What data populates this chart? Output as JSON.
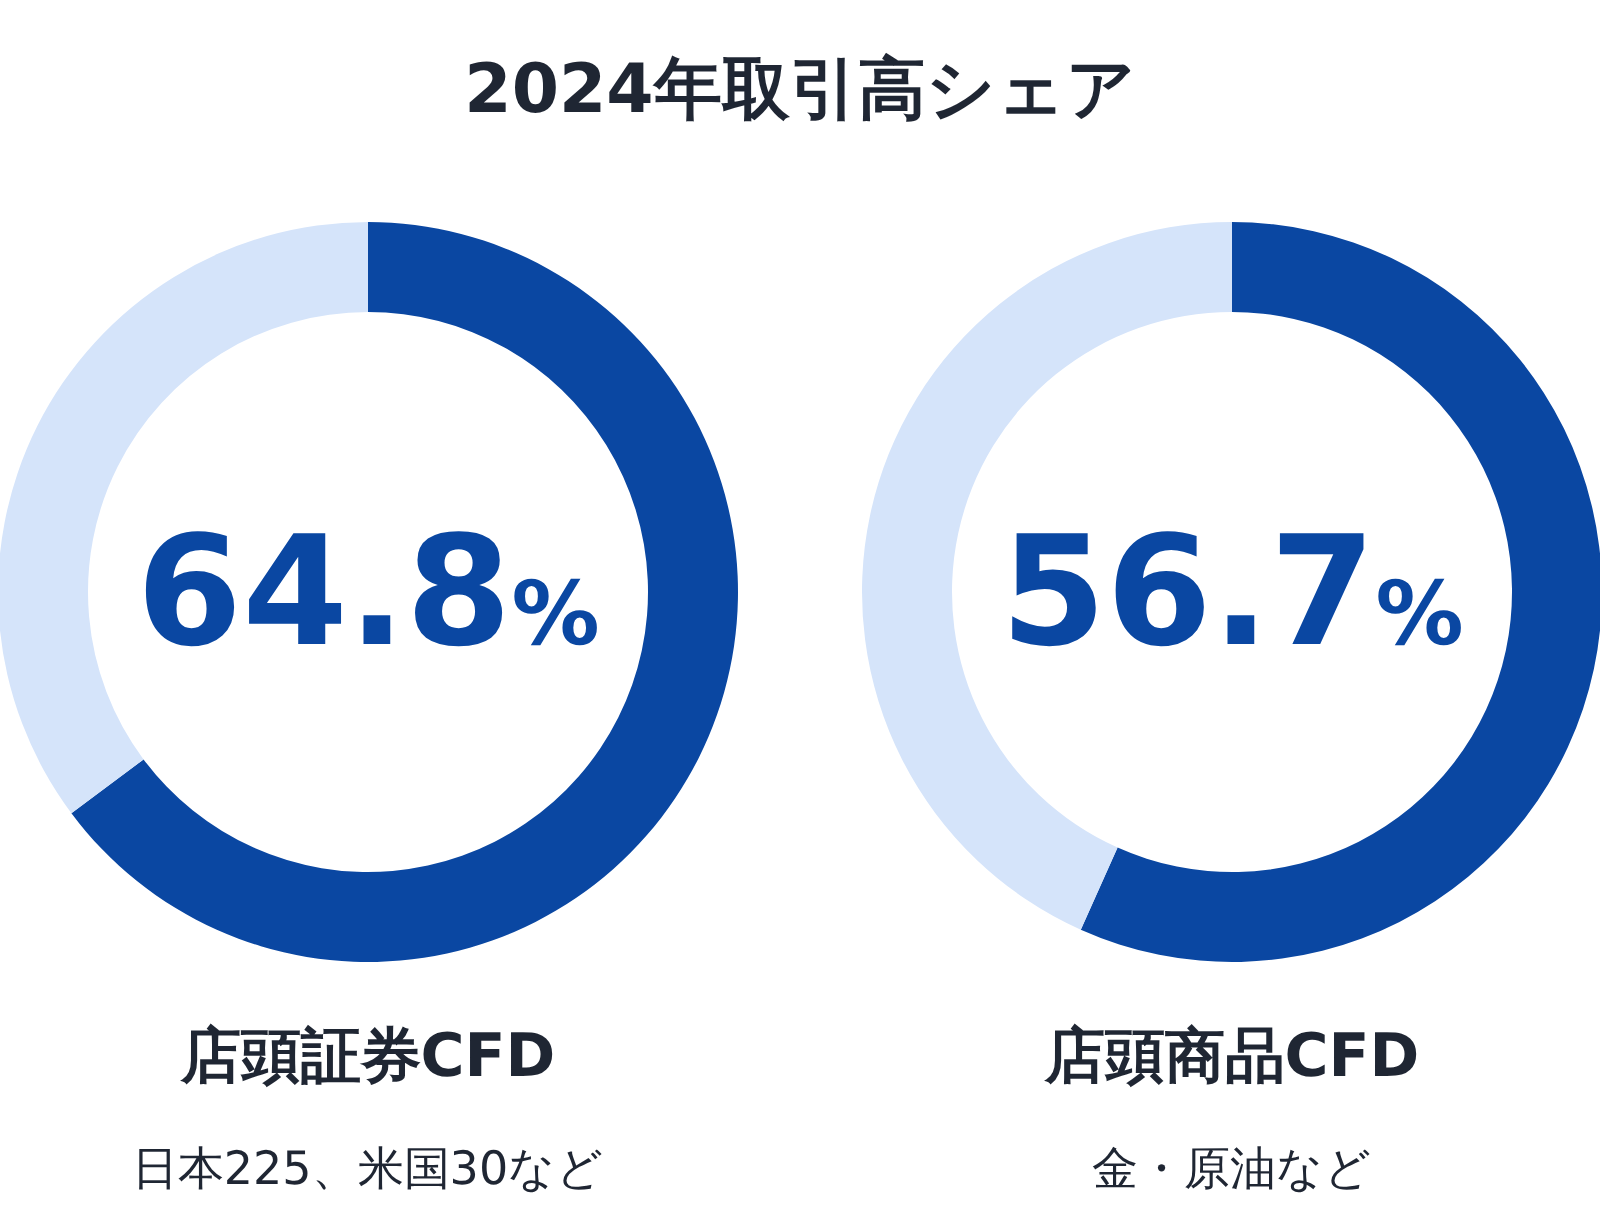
{
  "chart_data": [
    {
      "type": "donut",
      "title": "店頭証券CFD",
      "subtitle": "日本225、米国30など",
      "annotations": [
        "2024年取引高シェア"
      ],
      "categories": [
        null,
        null
      ],
      "values": [
        64.8,
        35.2
      ],
      "colors": [
        "#0a47a2",
        "#d5e4fa"
      ],
      "value_labels": [
        "64.8%",
        null
      ]
    },
    {
      "type": "donut",
      "title": "店頭商品CFD",
      "subtitle": "金・原油など",
      "categories": [
        null,
        null
      ],
      "values": [
        56.7,
        43.3
      ],
      "colors": [
        "#0a47a2",
        "#d5e4fa"
      ],
      "value_labels": [
        "56.7%",
        null
      ]
    }
  ]
}
